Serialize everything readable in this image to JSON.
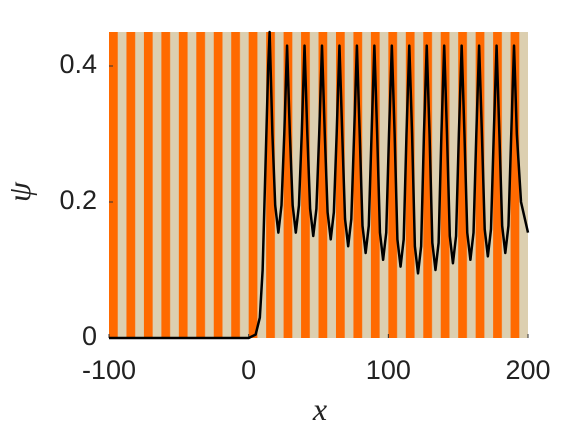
{
  "chart_data": {
    "type": "line",
    "xlabel": "x",
    "ylabel": "ψ",
    "xlim": [
      -100,
      200
    ],
    "ylim": [
      0,
      0.45
    ],
    "xticks": [
      -100,
      0,
      100,
      200
    ],
    "yticks": [
      0,
      0.2,
      0.4
    ],
    "series": [
      {
        "color": "#000000",
        "x": [
          -100,
          0,
          5,
          8,
          10,
          12,
          14,
          15,
          17,
          19,
          21.25,
          23.5,
          25.5,
          27.5,
          29.5,
          31.5,
          33.75,
          36,
          38,
          40,
          42,
          44,
          46.25,
          48.5,
          50.5,
          52.5,
          54.5,
          56.5,
          58.75,
          61,
          63,
          65,
          67,
          69,
          71.25,
          73.5,
          75.5,
          77.5,
          79.5,
          81.5,
          83.75,
          86,
          88,
          90,
          92,
          94,
          96.25,
          98.5,
          100.5,
          102.5,
          104.5,
          106.5,
          108.75,
          111,
          113,
          115,
          117,
          119,
          121.25,
          123.5,
          125.5,
          127.5,
          129.5,
          131.5,
          133.75,
          136,
          138,
          140,
          142,
          144,
          146.25,
          148.5,
          150.5,
          152.5,
          154.5,
          156.5,
          158.75,
          161,
          163,
          165,
          167,
          169,
          171.25,
          173.5,
          175.5,
          177.5,
          179.5,
          181.5,
          183.75,
          186,
          188,
          190,
          192,
          195,
          200
        ],
        "values": [
          0,
          0,
          0.005,
          0.03,
          0.1,
          0.25,
          0.4,
          0.45,
          0.3,
          0.195,
          0.155,
          0.195,
          0.3,
          0.43,
          0.3,
          0.195,
          0.155,
          0.195,
          0.3,
          0.43,
          0.3,
          0.19,
          0.15,
          0.19,
          0.3,
          0.43,
          0.3,
          0.185,
          0.145,
          0.185,
          0.3,
          0.43,
          0.3,
          0.175,
          0.135,
          0.175,
          0.3,
          0.43,
          0.3,
          0.165,
          0.125,
          0.165,
          0.3,
          0.43,
          0.3,
          0.155,
          0.115,
          0.155,
          0.3,
          0.43,
          0.3,
          0.145,
          0.105,
          0.145,
          0.3,
          0.43,
          0.3,
          0.135,
          0.095,
          0.135,
          0.3,
          0.43,
          0.3,
          0.14,
          0.1,
          0.14,
          0.3,
          0.43,
          0.3,
          0.15,
          0.11,
          0.15,
          0.3,
          0.43,
          0.3,
          0.155,
          0.115,
          0.155,
          0.3,
          0.43,
          0.3,
          0.16,
          0.12,
          0.16,
          0.3,
          0.43,
          0.3,
          0.165,
          0.125,
          0.165,
          0.3,
          0.43,
          0.3,
          0.2,
          0.155
        ]
      }
    ]
  }
}
